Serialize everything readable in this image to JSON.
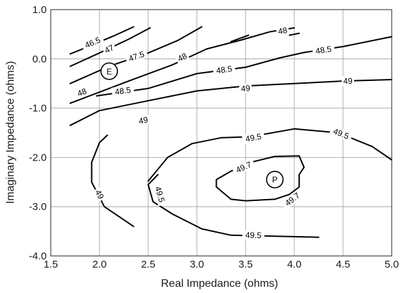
{
  "chart_data": {
    "type": "contour",
    "title": "",
    "xlabel": "Real Impedance (ohms)",
    "ylabel": "Imaginary Impedance (ohms)",
    "xlim": [
      1.5,
      5.0
    ],
    "ylim": [
      -4.0,
      1.0
    ],
    "grid": true,
    "x_ticks": [
      1.5,
      2.0,
      2.5,
      3.0,
      3.5,
      4.0,
      4.5,
      5.0
    ],
    "x_tick_labels": [
      "1.5",
      "2.0",
      "2.5",
      "3.0",
      "3.5",
      "4.0",
      "4.5",
      "5.0"
    ],
    "y_ticks": [
      1.0,
      0.0,
      -1.0,
      -2.0,
      -3.0,
      -4.0
    ],
    "y_tick_labels": [
      "1.0",
      "0.0",
      "-1.0",
      "-2.0",
      "-3.0",
      "-4.0"
    ],
    "levels": [
      {
        "level": "46.5",
        "segments": [
          [
            [
              1.7,
              0.1
            ],
            [
              1.85,
              0.22
            ],
            [
              2.15,
              0.47
            ],
            [
              2.35,
              0.65
            ]
          ]
        ],
        "labels": [
          {
            "text": "46.5",
            "x": 1.93,
            "y": 0.33
          }
        ]
      },
      {
        "level": "47",
        "segments": [
          [
            [
              1.7,
              -0.15
            ],
            [
              2.0,
              0.12
            ],
            [
              2.3,
              0.4
            ],
            [
              2.52,
              0.63
            ]
          ]
        ],
        "labels": [
          {
            "text": "47",
            "x": 2.1,
            "y": 0.2
          }
        ]
      },
      {
        "level": "47.5",
        "segments": [
          [
            [
              1.7,
              -0.5
            ],
            [
              2.1,
              -0.15
            ],
            [
              2.5,
              0.12
            ],
            [
              2.8,
              0.37
            ],
            [
              3.05,
              0.65
            ]
          ]
        ],
        "labels": [
          {
            "text": "47.5",
            "x": 2.38,
            "y": 0.05
          }
        ]
      },
      {
        "level": "48",
        "segments": [
          [
            [
              1.7,
              -0.9
            ],
            [
              2.3,
              -0.45
            ],
            [
              2.75,
              -0.12
            ],
            [
              3.1,
              0.2
            ],
            [
              3.45,
              0.38
            ],
            [
              3.75,
              0.55
            ],
            [
              4.0,
              0.63
            ]
          ]
        ],
        "labels": [
          {
            "text": "48",
            "x": 1.82,
            "y": -0.68
          },
          {
            "text": "48",
            "x": 2.85,
            "y": 0.03
          },
          {
            "text": "48",
            "x": 3.88,
            "y": 0.57
          }
        ],
        "dashes": [
          [
            [
              3.35,
              0.35
            ],
            [
              3.53,
              0.48
            ]
          ],
          [
            [
              3.95,
              0.48
            ],
            [
              4.05,
              0.52
            ]
          ]
        ]
      },
      {
        "level": "48.5",
        "segments": [
          [
            [
              1.97,
              -0.75
            ],
            [
              2.5,
              -0.6
            ],
            [
              3.0,
              -0.3
            ],
            [
              3.5,
              -0.17
            ],
            [
              3.85,
              0.02
            ],
            [
              4.1,
              0.13
            ],
            [
              4.5,
              0.25
            ],
            [
              5.0,
              0.45
            ]
          ]
        ],
        "labels": [
          {
            "text": "48.5",
            "x": 2.24,
            "y": -0.65
          },
          {
            "text": "48.5",
            "x": 3.28,
            "y": -0.22
          },
          {
            "text": "48.5",
            "x": 4.3,
            "y": 0.18
          }
        ]
      },
      {
        "level": "49",
        "segments": [
          [
            [
              1.7,
              -1.35
            ],
            [
              2.0,
              -1.05
            ],
            [
              2.5,
              -0.85
            ],
            [
              3.0,
              -0.65
            ],
            [
              3.5,
              -0.55
            ],
            [
              4.0,
              -0.5
            ],
            [
              4.5,
              -0.45
            ],
            [
              5.0,
              -0.42
            ]
          ],
          [
            [
              2.35,
              -3.4
            ],
            [
              2.05,
              -3.0
            ],
            [
              1.92,
              -2.5
            ],
            [
              1.92,
              -2.1
            ],
            [
              2.0,
              -1.7
            ],
            [
              2.08,
              -1.55
            ]
          ]
        ],
        "labels": [
          {
            "text": "49",
            "x": 2.45,
            "y": -1.25
          },
          {
            "text": "49",
            "x": 3.5,
            "y": -0.6
          },
          {
            "text": "49",
            "x": 4.55,
            "y": -0.45
          },
          {
            "text": "49",
            "x": 2.0,
            "y": -2.75
          }
        ]
      },
      {
        "level": "49.5",
        "segments": [
          [
            [
              2.6,
              -2.35
            ],
            [
              2.5,
              -2.55
            ],
            [
              2.55,
              -2.9
            ],
            [
              2.75,
              -3.15
            ],
            [
              3.05,
              -3.45
            ],
            [
              3.35,
              -3.58
            ],
            [
              4.25,
              -3.62
            ]
          ],
          [
            [
              2.5,
              -2.48
            ],
            [
              2.7,
              -2.0
            ],
            [
              2.95,
              -1.72
            ],
            [
              3.25,
              -1.6
            ],
            [
              3.55,
              -1.58
            ],
            [
              4.0,
              -1.42
            ],
            [
              4.45,
              -1.5
            ],
            [
              4.8,
              -1.78
            ],
            [
              5.0,
              -2.05
            ]
          ]
        ],
        "labels": [
          {
            "text": "49.5",
            "x": 2.62,
            "y": -2.75
          },
          {
            "text": "49.5",
            "x": 3.58,
            "y": -1.6
          },
          {
            "text": "49.5",
            "x": 4.48,
            "y": -1.52
          },
          {
            "text": "49.5",
            "x": 3.58,
            "y": -3.58
          }
        ]
      },
      {
        "level": "49.7",
        "segments": [
          [
            [
              4.1,
              -2.2
            ],
            [
              4.05,
              -2.35
            ],
            [
              4.05,
              -2.6
            ],
            [
              3.95,
              -2.75
            ],
            [
              3.8,
              -2.85
            ],
            [
              3.5,
              -2.88
            ],
            [
              3.35,
              -2.85
            ],
            [
              3.2,
              -2.6
            ],
            [
              3.2,
              -2.45
            ],
            [
              3.35,
              -2.28
            ],
            [
              3.55,
              -2.1
            ],
            [
              3.8,
              -1.98
            ],
            [
              4.05,
              -1.97
            ],
            [
              4.1,
              -2.2
            ]
          ]
        ],
        "labels": [
          {
            "text": "49.7",
            "x": 3.48,
            "y": -2.2
          },
          {
            "text": "49.7",
            "x": 3.98,
            "y": -2.85
          }
        ]
      }
    ],
    "markers": [
      {
        "label": "E",
        "x": 2.1,
        "y": -0.25
      },
      {
        "label": "P",
        "x": 3.8,
        "y": -2.45
      }
    ]
  }
}
